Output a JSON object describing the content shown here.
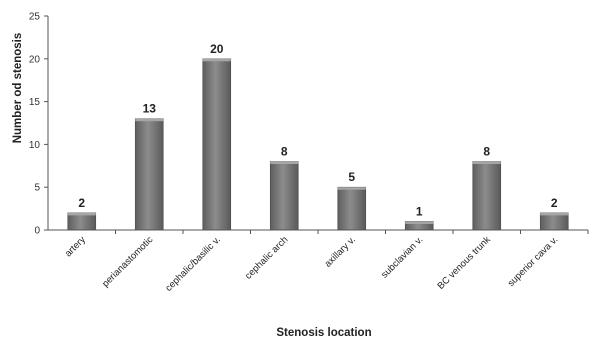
{
  "chart_data": {
    "type": "bar",
    "title": "",
    "xlabel": "Stenosis location",
    "ylabel": "Number od stenosis",
    "categories": [
      "artery",
      "perianastomotic",
      "cephalic/basilic v.",
      "cephalic arch",
      "axillary v.",
      "subclavian v.",
      "BC venous trunk",
      "superior cava v."
    ],
    "values": [
      2,
      13,
      20,
      8,
      5,
      1,
      8,
      2
    ],
    "ylim": [
      0,
      25
    ],
    "yticks": [
      0,
      5,
      10,
      15,
      20,
      25
    ],
    "grid": false,
    "legend": "none",
    "bar_color": "#7a7a7a",
    "bar_highlight_color": "#a6a6a6",
    "axis_color": "#555555"
  }
}
